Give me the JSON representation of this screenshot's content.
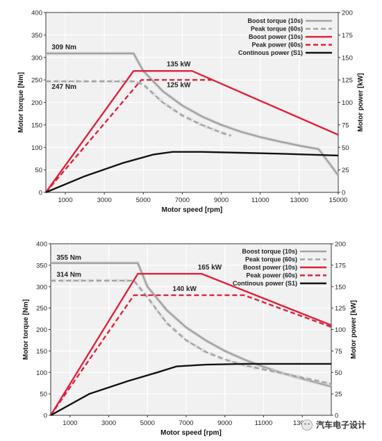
{
  "chart_data": [
    {
      "type": "line",
      "xlabel": "Motor speed [rpm]",
      "ylabel": "Motor torque [Nm]",
      "y2label": "Motor power [kW]",
      "xlim": [
        0,
        15000
      ],
      "ylim": [
        0,
        400
      ],
      "y2lim": [
        0,
        200
      ],
      "x_ticks": [
        1000,
        3000,
        5000,
        7000,
        9000,
        11000,
        13000,
        15000
      ],
      "y_ticks": [
        0,
        50,
        100,
        150,
        200,
        250,
        300,
        350,
        400
      ],
      "y2_ticks": [
        0,
        25,
        50,
        75,
        100,
        125,
        150,
        175,
        200
      ],
      "grid": true,
      "legend_position": "top-right",
      "series": [
        {
          "name": "Boost torque (10s)",
          "axis": "left",
          "color": "#a3a3a3",
          "dash": false,
          "x": [
            0,
            4500,
            5000,
            6000,
            7000,
            8000,
            9000,
            10000,
            11000,
            12000,
            13000,
            14000,
            15000
          ],
          "y": [
            309,
            309,
            270,
            225,
            193,
            169,
            150,
            135,
            123,
            113,
            104,
            96,
            38
          ]
        },
        {
          "name": "Peak torque (60s)",
          "axis": "left",
          "color": "#a3a3a3",
          "dash": true,
          "x": [
            0,
            4500,
            5000,
            6000,
            7000,
            8000,
            9000,
            9500
          ],
          "y": [
            247,
            247,
            240,
            200,
            171,
            150,
            133,
            126
          ]
        },
        {
          "name": "Boost power (10s)",
          "axis": "right",
          "color": "#e0203a",
          "dash": false,
          "x": [
            0,
            4500,
            7500,
            15000
          ],
          "y": [
            0,
            135,
            135,
            64
          ]
        },
        {
          "name": "Peak power (60s)",
          "axis": "right",
          "color": "#e0203a",
          "dash": true,
          "x": [
            0,
            4900,
            8500
          ],
          "y": [
            0,
            125,
            125
          ]
        },
        {
          "name": "Continous power (S1)",
          "axis": "right",
          "color": "#111111",
          "dash": false,
          "x": [
            0,
            2000,
            4000,
            5500,
            6500,
            8000,
            10000,
            12000,
            15000
          ],
          "y": [
            0,
            18,
            33,
            42,
            45,
            45,
            44,
            43,
            41
          ]
        }
      ],
      "annotations": [
        {
          "text": "309 Nm",
          "x": 300,
          "y": 318,
          "axis": "left"
        },
        {
          "text": "247 Nm",
          "x": 300,
          "y": 230,
          "axis": "left"
        },
        {
          "text": "135 kW",
          "x": 6200,
          "y": 140,
          "axis": "right"
        },
        {
          "text": "125 kW",
          "x": 6200,
          "y": 117,
          "axis": "right"
        }
      ]
    },
    {
      "type": "line",
      "xlabel": "Motor speed [rpm]",
      "ylabel": "Motor torque [Nm]",
      "y2label": "Motor power [kW]",
      "xlim": [
        0,
        14500
      ],
      "ylim": [
        0,
        400
      ],
      "y2lim": [
        0,
        200
      ],
      "x_ticks": [
        1000,
        3000,
        5000,
        7000,
        9000,
        11000,
        13000
      ],
      "y_ticks": [
        0,
        50,
        100,
        150,
        200,
        250,
        300,
        350,
        400
      ],
      "y2_ticks": [
        0,
        25,
        50,
        75,
        100,
        125,
        150,
        175,
        200
      ],
      "grid": true,
      "legend_position": "top-right",
      "series": [
        {
          "name": "Boost torque (10s)",
          "axis": "left",
          "color": "#a3a3a3",
          "dash": false,
          "x": [
            0,
            4500,
            5000,
            6000,
            7000,
            8000,
            9000,
            10000,
            11000,
            12000,
            13000,
            14500
          ],
          "y": [
            355,
            355,
            300,
            245,
            205,
            175,
            150,
            130,
            113,
            98,
            85,
            67
          ]
        },
        {
          "name": "Peak torque (60s)",
          "axis": "left",
          "color": "#a3a3a3",
          "dash": true,
          "x": [
            0,
            4300,
            5000,
            6000,
            7000,
            8000,
            9000,
            10000,
            11000,
            12000,
            13000,
            14500
          ],
          "y": [
            314,
            314,
            275,
            215,
            175,
            148,
            130,
            117,
            107,
            98,
            88,
            73
          ]
        },
        {
          "name": "Boost power (10s)",
          "axis": "right",
          "color": "#e0203a",
          "dash": false,
          "x": [
            0,
            4500,
            7800,
            14500
          ],
          "y": [
            0,
            165,
            165,
            105
          ]
        },
        {
          "name": "Peak power (60s)",
          "axis": "right",
          "color": "#e0203a",
          "dash": true,
          "x": [
            0,
            4300,
            10000,
            14500
          ],
          "y": [
            0,
            140,
            140,
            103
          ]
        },
        {
          "name": "Continous power (S1)",
          "axis": "right",
          "color": "#111111",
          "dash": false,
          "x": [
            0,
            2000,
            4000,
            5500,
            6500,
            8000,
            10000,
            12000,
            14500
          ],
          "y": [
            0,
            25,
            40,
            50,
            57,
            59,
            60,
            60,
            60
          ]
        }
      ],
      "annotations": [
        {
          "text": "355 Nm",
          "x": 300,
          "y": 363,
          "axis": "left"
        },
        {
          "text": "314 Nm",
          "x": 300,
          "y": 323,
          "axis": "left"
        },
        {
          "text": "165 kW",
          "x": 7600,
          "y": 170,
          "axis": "right"
        },
        {
          "text": "140 kW",
          "x": 6300,
          "y": 145,
          "axis": "right"
        }
      ]
    }
  ],
  "watermark": {
    "text": "汽车电子设计",
    "icon": "wechat-logo-icon"
  }
}
